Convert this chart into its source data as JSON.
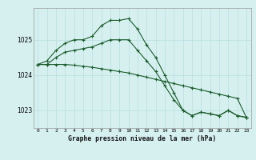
{
  "hours": [
    0,
    1,
    2,
    3,
    4,
    5,
    6,
    7,
    8,
    9,
    10,
    11,
    12,
    13,
    14,
    15,
    16,
    17,
    18,
    19,
    20,
    21,
    22,
    23
  ],
  "line1": [
    1024.3,
    1024.4,
    1024.7,
    1024.9,
    1025.0,
    1025.0,
    1025.1,
    1025.4,
    1025.55,
    1025.55,
    1025.6,
    1025.3,
    1024.85,
    1024.5,
    1024.0,
    1023.5,
    1023.0,
    1022.85,
    1022.95,
    1022.9,
    1022.85,
    1023.0,
    1022.85,
    1022.8
  ],
  "line2": [
    1024.3,
    1024.3,
    1024.5,
    1024.65,
    1024.7,
    1024.75,
    1024.8,
    1024.9,
    1025.0,
    1025.0,
    1025.0,
    1024.7,
    1024.4,
    1024.1,
    1023.7,
    1023.3,
    1023.0,
    1022.85,
    1022.95,
    1022.9,
    1022.85,
    1023.0,
    1022.85,
    1022.8
  ],
  "line3": [
    1024.3,
    1024.3,
    1024.3,
    1024.3,
    1024.28,
    1024.25,
    1024.22,
    1024.18,
    1024.14,
    1024.1,
    1024.06,
    1024.0,
    1023.94,
    1023.88,
    1023.82,
    1023.76,
    1023.7,
    1023.64,
    1023.58,
    1023.52,
    1023.46,
    1023.4,
    1023.34,
    1022.8
  ],
  "bg_color": "#d6f0f0",
  "grid_color": "#b8dede",
  "line_color": "#1a5c2a",
  "xlabel": "Graphe pression niveau de la mer (hPa)",
  "ylim": [
    1022.5,
    1025.9
  ],
  "yticks": [
    1023,
    1024,
    1025
  ],
  "xlim": [
    -0.5,
    23.5
  ],
  "dpi": 100,
  "fig_width": 3.2,
  "fig_height": 2.0
}
